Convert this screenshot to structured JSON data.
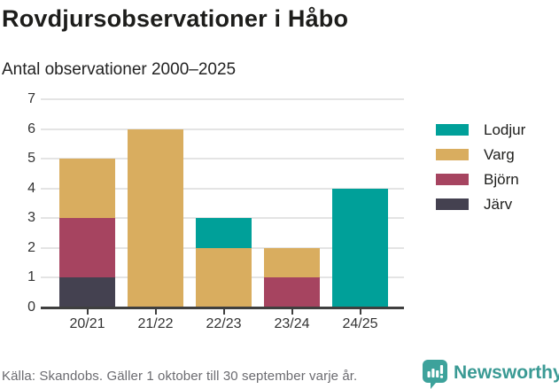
{
  "header": {
    "title": "Rovdjursobservationer i Håbo",
    "subtitle": "Antal observationer 2000–2025"
  },
  "chart_data": {
    "type": "bar",
    "stacked": true,
    "title": "Rovdjursobservationer i Håbo",
    "subtitle": "Antal observationer 2000–2025",
    "categories": [
      "20/21",
      "21/22",
      "22/23",
      "23/24",
      "24/25"
    ],
    "series": [
      {
        "name": "Lodjur",
        "color": "#00a099",
        "values": [
          0,
          0,
          1,
          0,
          4
        ]
      },
      {
        "name": "Varg",
        "color": "#d9ad5f",
        "values": [
          2,
          6,
          2,
          1,
          0
        ]
      },
      {
        "name": "Björn",
        "color": "#a64460",
        "values": [
          2,
          0,
          0,
          1,
          0
        ]
      },
      {
        "name": "Järv",
        "color": "#444150",
        "values": [
          1,
          0,
          0,
          0,
          0
        ]
      }
    ],
    "stack_order_bottom_to_top": [
      "Järv",
      "Björn",
      "Varg",
      "Lodjur"
    ],
    "totals": [
      5,
      6,
      3,
      2,
      4
    ],
    "xlabel": "",
    "ylabel": "",
    "ylim": [
      0,
      7
    ],
    "yticks": [
      0,
      1,
      2,
      3,
      4,
      5,
      6,
      7
    ],
    "grid": true,
    "legend_position": "right"
  },
  "colors": {
    "axis": "#3f3f3f",
    "gridline": "#e4e4e4",
    "tick_text": "#333333",
    "brand_teal": "#3a9a94"
  },
  "footer": {
    "source": "Källa: Skandobs. Gäller 1 oktober till 30 september varje år.",
    "brand": "Newsworthy"
  }
}
